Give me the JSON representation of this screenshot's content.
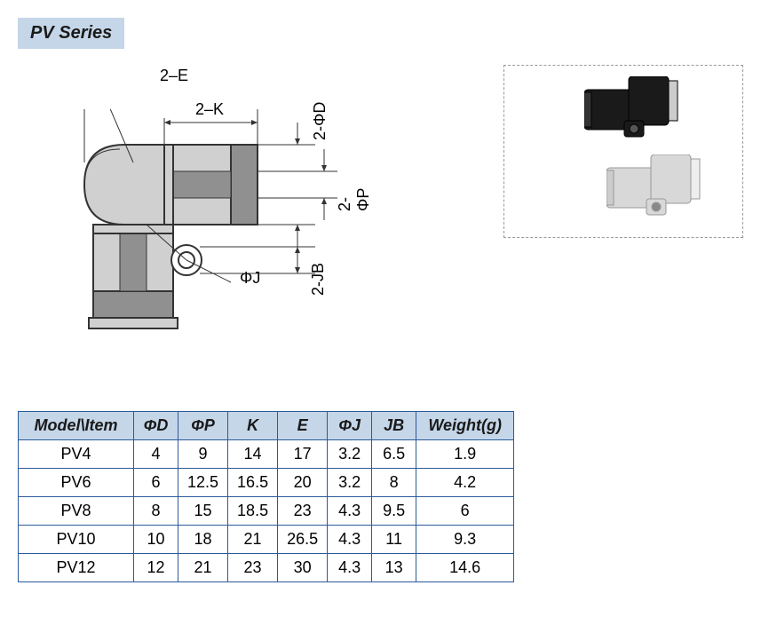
{
  "title": "PV Series",
  "diagram_labels": {
    "two_e": "2–E",
    "two_k": "2–K",
    "two_phi_d": "2-ΦD",
    "two_phi_p": "2-ΦP",
    "phi_j": "ΦJ",
    "two_jb": "2-JB"
  },
  "table": {
    "headers": [
      "Model\\Item",
      "ΦD",
      "ΦP",
      "K",
      "E",
      "ΦJ",
      "JB",
      "Weight(g)"
    ],
    "rows": [
      [
        "PV4",
        "4",
        "9",
        "14",
        "17",
        "3.2",
        "6.5",
        "1.9"
      ],
      [
        "PV6",
        "6",
        "12.5",
        "16.5",
        "20",
        "3.2",
        "8",
        "4.2"
      ],
      [
        "PV8",
        "8",
        "15",
        "18.5",
        "23",
        "4.3",
        "9.5",
        "6"
      ],
      [
        "PV10",
        "10",
        "18",
        "21",
        "26.5",
        "4.3",
        "11",
        "9.3"
      ],
      [
        "PV12",
        "12",
        "21",
        "23",
        "30",
        "4.3",
        "13",
        "14.6"
      ]
    ]
  },
  "styling": {
    "title_bg": "#c5d6e8",
    "table_header_bg": "#c5d6e8",
    "table_border": "#2a5a9a",
    "diagram_stroke": "#333333",
    "diagram_fill_light": "#d0d0d0",
    "diagram_fill_dark": "#909090",
    "photo_black": "#1a1a1a",
    "photo_grey": "#d8d8d8",
    "font_family": "Arial, sans-serif",
    "title_fontsize": 20,
    "label_fontsize": 18,
    "table_fontsize": 18
  }
}
